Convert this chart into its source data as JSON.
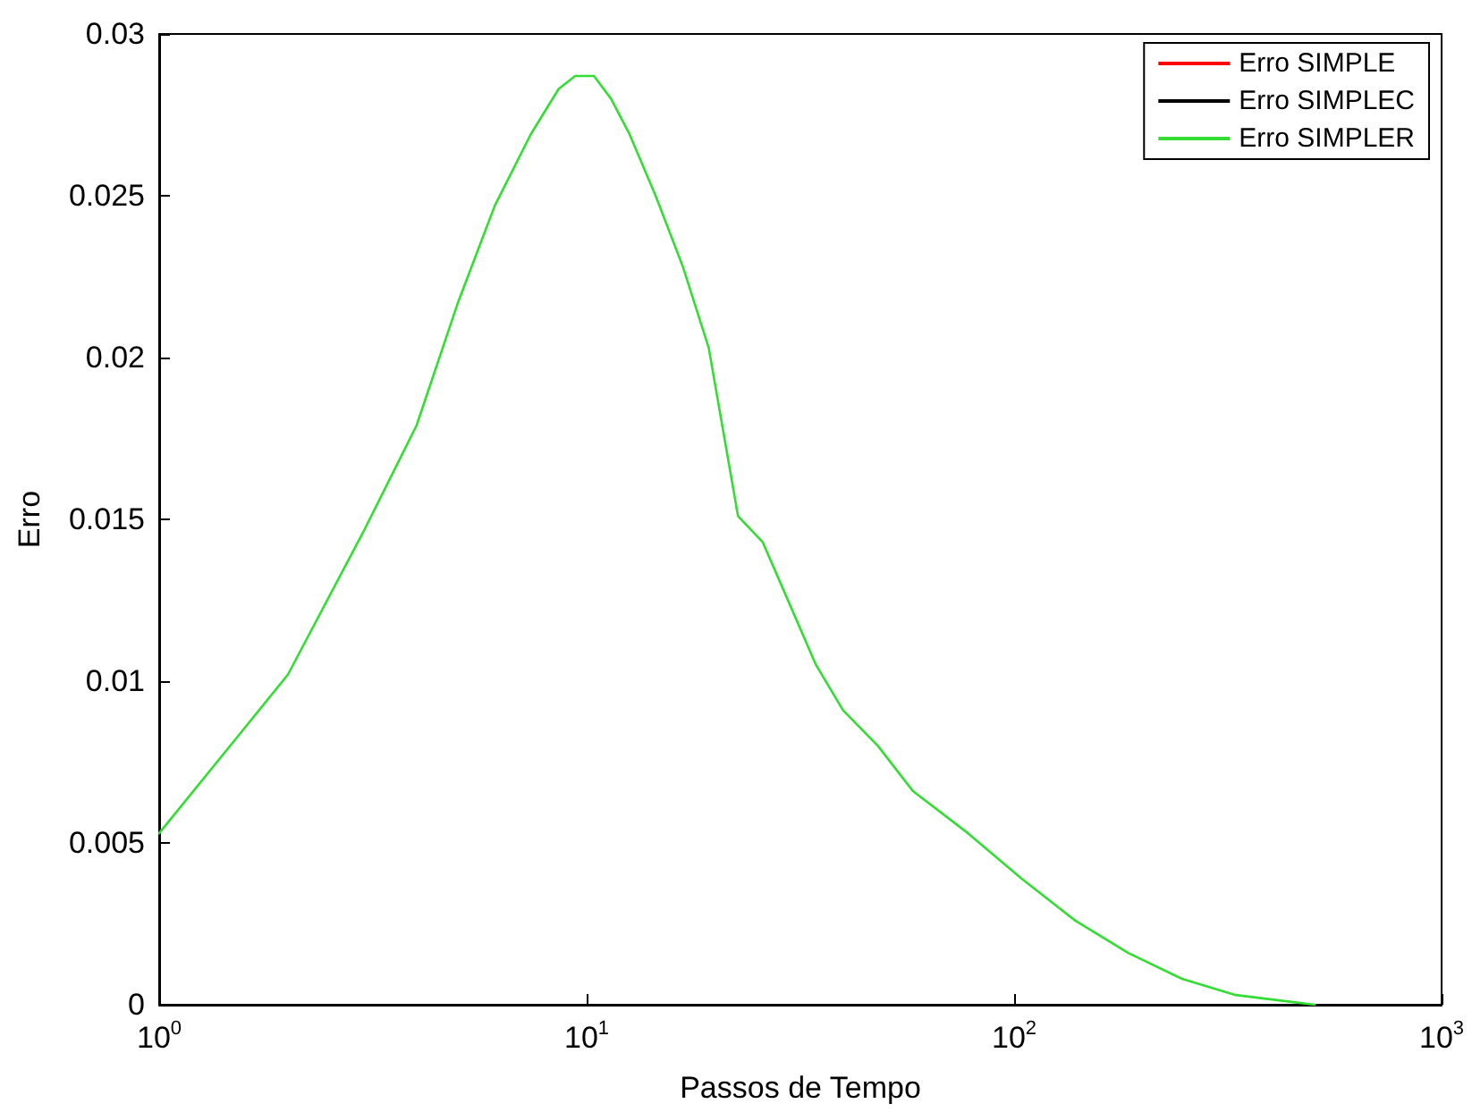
{
  "chart_data": {
    "type": "line",
    "xlabel": "Passos de Tempo",
    "ylabel": "Erro",
    "log": "x",
    "grid": false,
    "legend": "top right",
    "marker": "none",
    "line_style": "solid",
    "xlim": [
      1,
      1000
    ],
    "xticks": [
      {
        "value": 1,
        "label": "10$^{0}$"
      },
      {
        "value": 10,
        "label": "10$^{1}$"
      },
      {
        "value": 100,
        "label": "10$^{2}$"
      },
      {
        "value": 1000,
        "label": "10$^{3}$"
      }
    ],
    "ylim": [
      0,
      0.03
    ],
    "yticks": [
      0,
      0.005,
      0.01,
      0.015,
      0.02,
      0.025,
      0.03
    ],
    "x": [
      1,
      2,
      3,
      4,
      5,
      6.1,
      7.4,
      8.6,
      9.4,
      10.4,
      11.4,
      12.6,
      14.5,
      16.8,
      19.3,
      22.6,
      25.8,
      29.8,
      34.4,
      39.8,
      48,
      58,
      78,
      104,
      139,
      185,
      247,
      330,
      438,
      505
    ],
    "series": [
      {
        "name": "Erro SIMPLE",
        "color": "#ff0000",
        "values": [
          null,
          null,
          null,
          null,
          null,
          null,
          null,
          null,
          null,
          null,
          null,
          null,
          null,
          null,
          null,
          null,
          null,
          null,
          null,
          null,
          null,
          null,
          null,
          null,
          null,
          null,
          null,
          null,
          null,
          null
        ]
      },
      {
        "name": "Erro SIMPLEC",
        "color": "#000000",
        "values": [
          null,
          null,
          null,
          null,
          null,
          null,
          null,
          null,
          null,
          null,
          null,
          null,
          null,
          null,
          null,
          null,
          null,
          null,
          null,
          null,
          null,
          null,
          null,
          null,
          null,
          null,
          null,
          null,
          null,
          null
        ]
      },
      {
        "name": "Erro SIMPLER",
        "color": "#33dd33",
        "values": [
          0.0053,
          0.0102,
          0.0146,
          0.0179,
          0.0217,
          0.0247,
          0.0269,
          0.0283,
          0.0287,
          0.0287,
          0.028,
          0.0269,
          0.025,
          0.0228,
          0.0203,
          0.0151,
          0.0143,
          0.0124,
          0.0105,
          0.0091,
          0.008,
          0.0066,
          0.0053,
          0.0039,
          0.0026,
          0.0016,
          0.0008,
          0.0003,
          0.0001,
          0
        ]
      }
    ]
  }
}
